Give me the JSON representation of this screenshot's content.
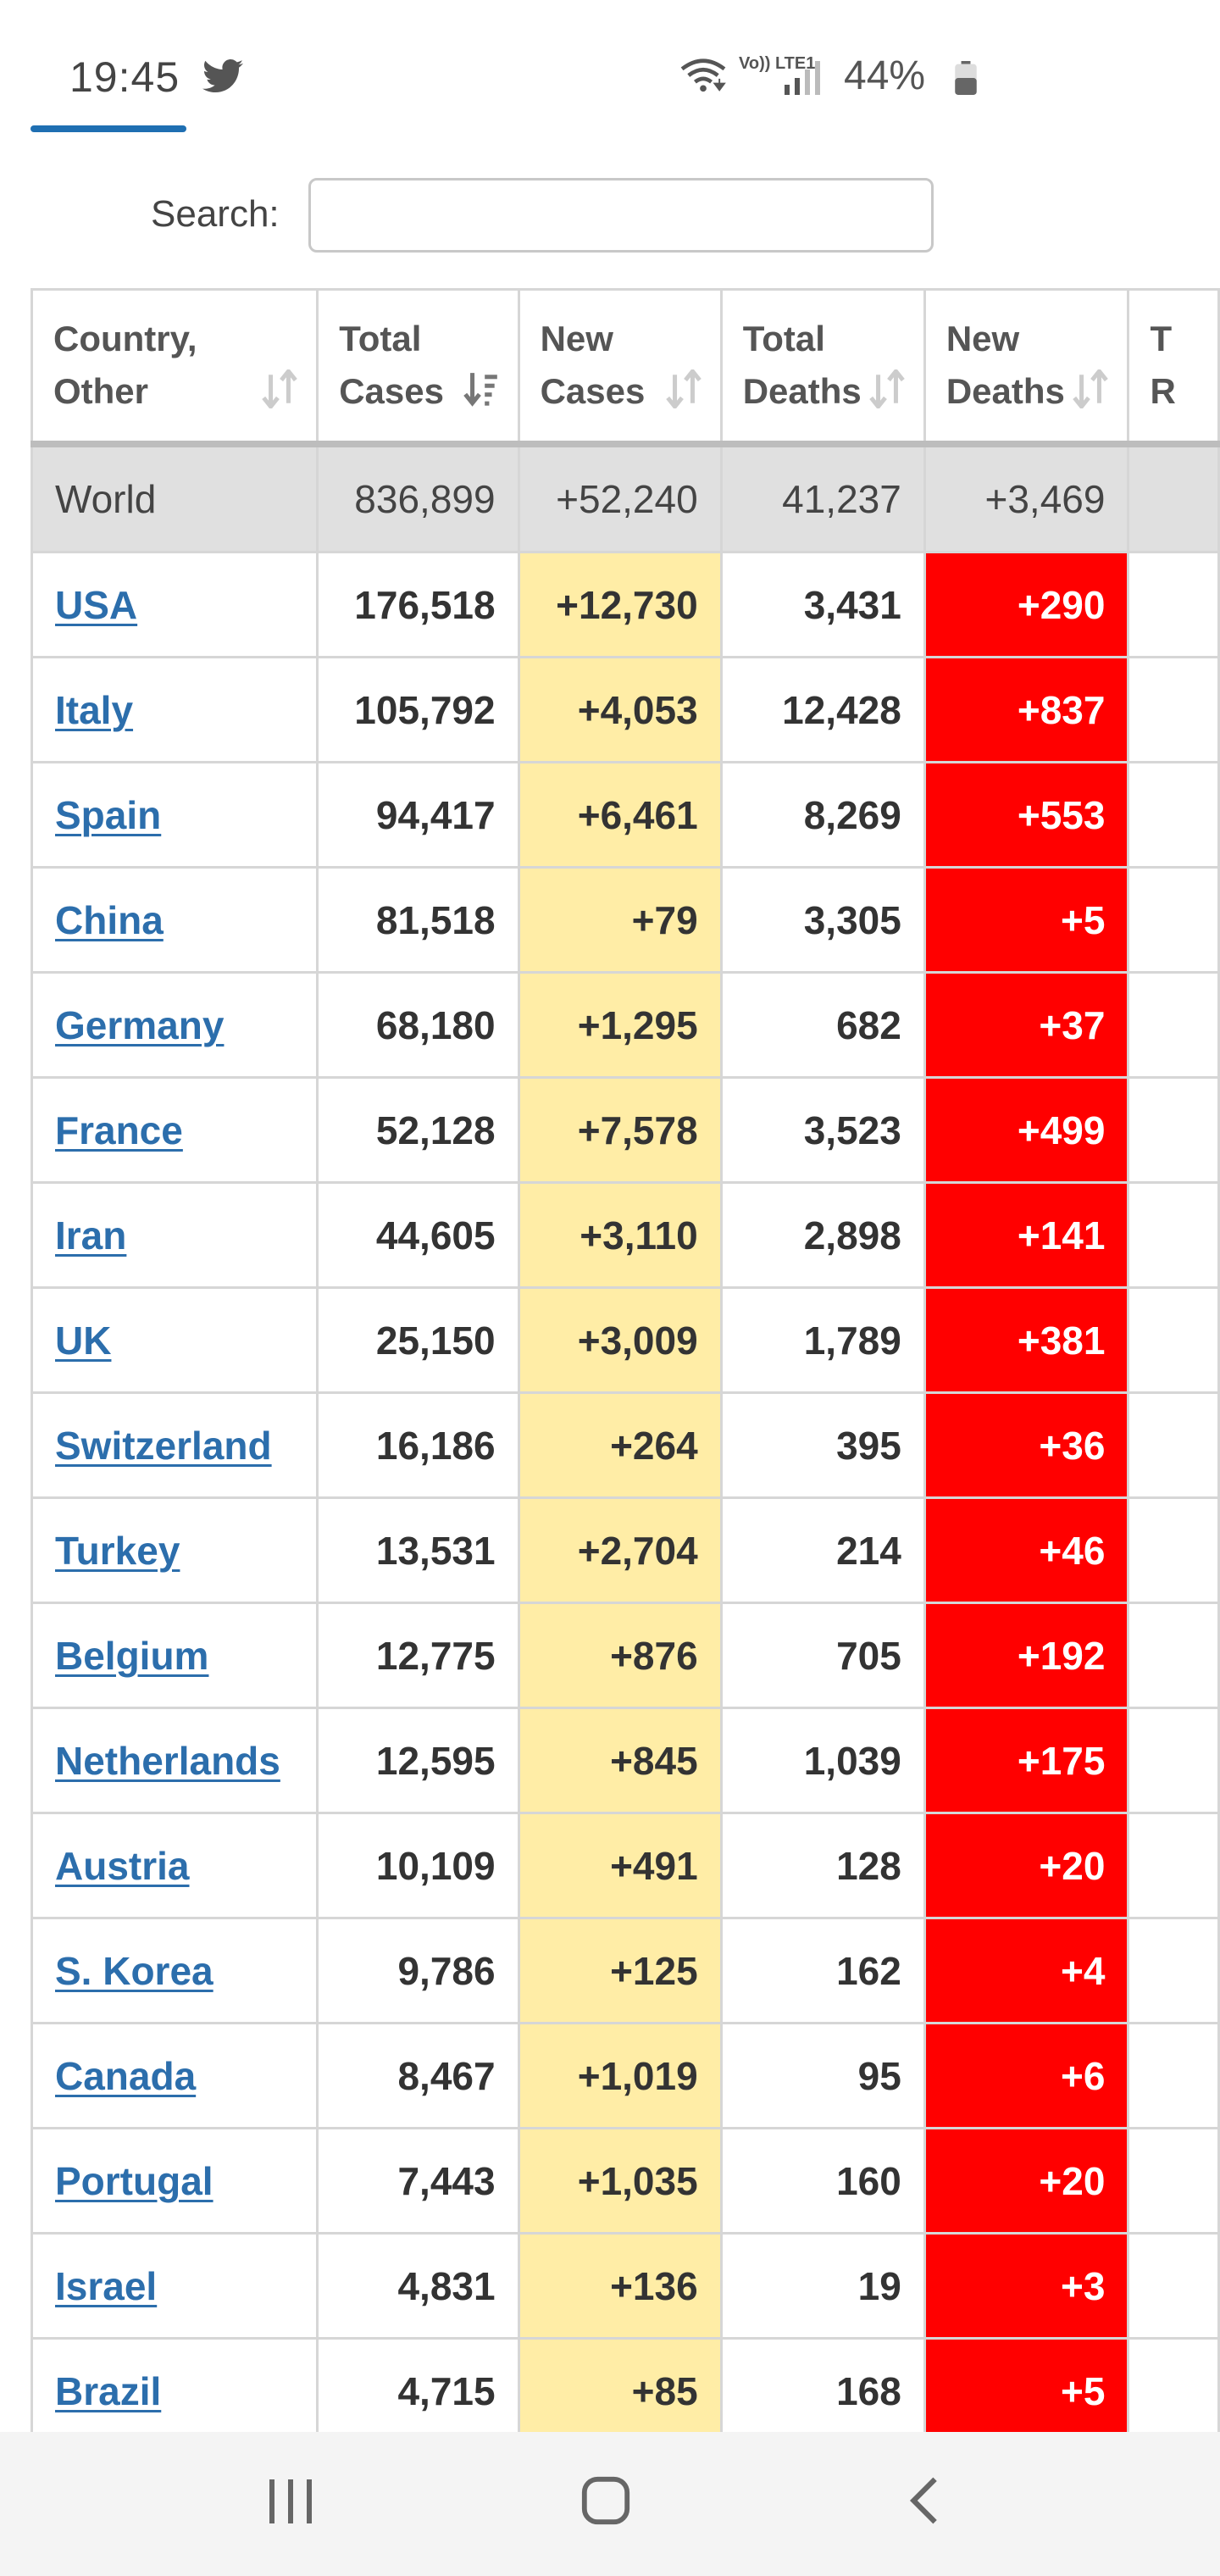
{
  "status_bar": {
    "time": "19:45",
    "network": "Vo)) LTE1",
    "battery": "44%",
    "icons": [
      "twitter-icon",
      "wifi-icon",
      "signal-icon",
      "battery-icon"
    ]
  },
  "search": {
    "label": "Search:",
    "value": "",
    "placeholder": ""
  },
  "table": {
    "headers": [
      {
        "line1": "Country,",
        "line2": "Other"
      },
      {
        "line1": "Total",
        "line2": "Cases"
      },
      {
        "line1": "New",
        "line2": "Cases"
      },
      {
        "line1": "Total",
        "line2": "Deaths"
      },
      {
        "line1": "New",
        "line2": "Deaths"
      },
      {
        "line1": "T",
        "line2": "R"
      }
    ],
    "world": {
      "country": "World",
      "total_cases": "836,899",
      "new_cases": "+52,240",
      "total_deaths": "41,237",
      "new_deaths": "+3,469"
    },
    "rows": [
      {
        "country": "USA",
        "total_cases": "176,518",
        "new_cases": "+12,730",
        "total_deaths": "3,431",
        "new_deaths": "+290"
      },
      {
        "country": "Italy",
        "total_cases": "105,792",
        "new_cases": "+4,053",
        "total_deaths": "12,428",
        "new_deaths": "+837"
      },
      {
        "country": "Spain",
        "total_cases": "94,417",
        "new_cases": "+6,461",
        "total_deaths": "8,269",
        "new_deaths": "+553"
      },
      {
        "country": "China",
        "total_cases": "81,518",
        "new_cases": "+79",
        "total_deaths": "3,305",
        "new_deaths": "+5"
      },
      {
        "country": "Germany",
        "total_cases": "68,180",
        "new_cases": "+1,295",
        "total_deaths": "682",
        "new_deaths": "+37"
      },
      {
        "country": "France",
        "total_cases": "52,128",
        "new_cases": "+7,578",
        "total_deaths": "3,523",
        "new_deaths": "+499"
      },
      {
        "country": "Iran",
        "total_cases": "44,605",
        "new_cases": "+3,110",
        "total_deaths": "2,898",
        "new_deaths": "+141"
      },
      {
        "country": "UK",
        "total_cases": "25,150",
        "new_cases": "+3,009",
        "total_deaths": "1,789",
        "new_deaths": "+381"
      },
      {
        "country": "Switzerland",
        "total_cases": "16,186",
        "new_cases": "+264",
        "total_deaths": "395",
        "new_deaths": "+36"
      },
      {
        "country": "Turkey",
        "total_cases": "13,531",
        "new_cases": "+2,704",
        "total_deaths": "214",
        "new_deaths": "+46"
      },
      {
        "country": "Belgium",
        "total_cases": "12,775",
        "new_cases": "+876",
        "total_deaths": "705",
        "new_deaths": "+192"
      },
      {
        "country": "Netherlands",
        "total_cases": "12,595",
        "new_cases": "+845",
        "total_deaths": "1,039",
        "new_deaths": "+175"
      },
      {
        "country": "Austria",
        "total_cases": "10,109",
        "new_cases": "+491",
        "total_deaths": "128",
        "new_deaths": "+20"
      },
      {
        "country": "S. Korea",
        "total_cases": "9,786",
        "new_cases": "+125",
        "total_deaths": "162",
        "new_deaths": "+4"
      },
      {
        "country": "Canada",
        "total_cases": "8,467",
        "new_cases": "+1,019",
        "total_deaths": "95",
        "new_deaths": "+6"
      },
      {
        "country": "Portugal",
        "total_cases": "7,443",
        "new_cases": "+1,035",
        "total_deaths": "160",
        "new_deaths": "+20"
      },
      {
        "country": "Israel",
        "total_cases": "4,831",
        "new_cases": "+136",
        "total_deaths": "19",
        "new_deaths": "+3"
      },
      {
        "country": "Brazil",
        "total_cases": "4,715",
        "new_cases": "+85",
        "total_deaths": "168",
        "new_deaths": "+5"
      }
    ]
  },
  "colors": {
    "link": "#2c6eac",
    "new_cases_bg": "#ffeda6",
    "new_deaths_bg": "#ff0000",
    "world_bg": "#e0e0e0",
    "tab_accent": "#1f6fb2"
  },
  "nav_bar": {
    "icons": [
      "recent-apps-icon",
      "home-icon",
      "back-icon"
    ]
  }
}
